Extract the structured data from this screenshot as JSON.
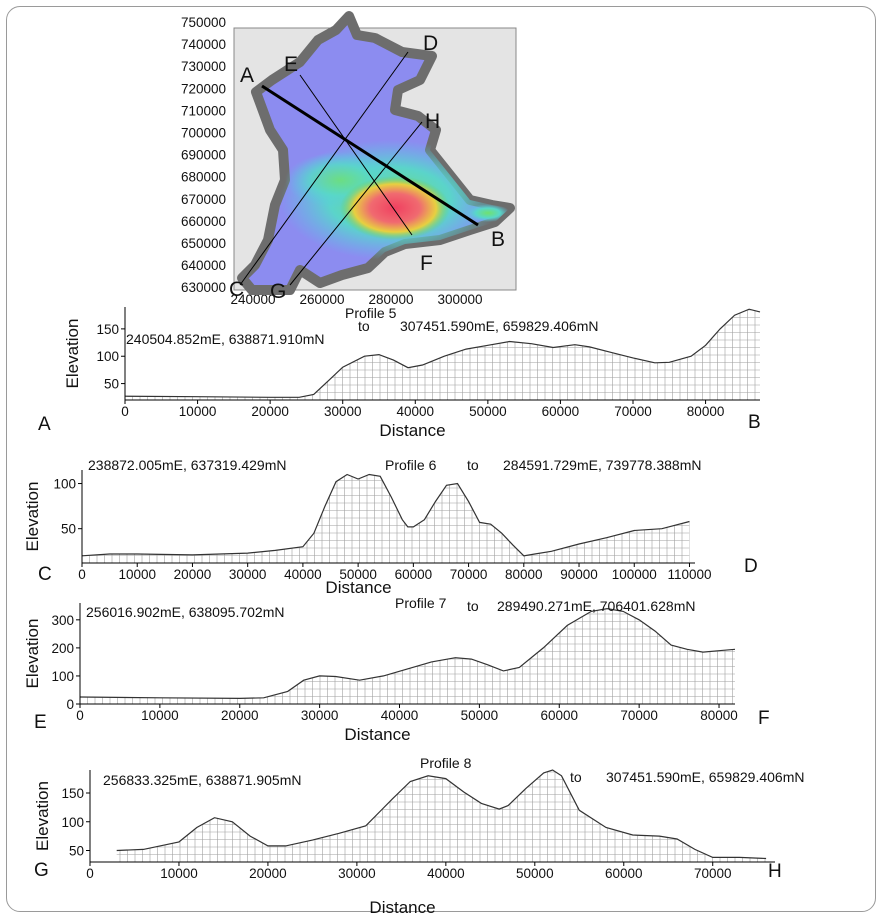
{
  "map": {
    "y_ticks": [
      "750000",
      "740000",
      "730000",
      "720000",
      "710000",
      "700000",
      "690000",
      "680000",
      "670000",
      "660000",
      "650000",
      "640000",
      "630000"
    ],
    "x_ticks": [
      "240000",
      "260000",
      "280000",
      "300000"
    ],
    "labels": [
      "A",
      "B",
      "C",
      "D",
      "E",
      "F",
      "G",
      "H"
    ],
    "colors": {
      "background": "#e4e4e4",
      "border": "#6d6d6d",
      "low": "#8c8cf0",
      "mid": "#58d8c8",
      "green": "#60d060",
      "yellow": "#e8e040",
      "high": "#f04060"
    }
  },
  "chart_data": [
    {
      "type": "area",
      "title": "Profile 5",
      "start_label": "240504.852mE, 638871.910mN",
      "to_label": "to",
      "end_label": "307451.590mE, 659829.406mN",
      "xlabel": "Distance",
      "ylabel": "Elevation",
      "start_point": "A",
      "end_point": "B",
      "xlim": [
        0,
        87500
      ],
      "ylim": [
        20,
        190
      ],
      "x_ticks": [
        0,
        10000,
        20000,
        30000,
        40000,
        50000,
        60000,
        70000,
        80000
      ],
      "y_ticks": [
        50,
        100,
        150
      ],
      "grid": true,
      "x": [
        0,
        10000,
        20000,
        24000,
        26000,
        28000,
        30000,
        33000,
        35000,
        37000,
        39000,
        41000,
        44000,
        47000,
        50000,
        53000,
        56000,
        59000,
        62000,
        64000,
        67000,
        70000,
        73000,
        75000,
        78000,
        80000,
        82000,
        84000,
        86000,
        87500
      ],
      "y": [
        27,
        26,
        25,
        25,
        30,
        55,
        80,
        100,
        103,
        93,
        79,
        84,
        100,
        113,
        120,
        127,
        123,
        116,
        121,
        117,
        107,
        97,
        88,
        89,
        100,
        120,
        150,
        175,
        186,
        181
      ]
    },
    {
      "type": "area",
      "title": "Profile 6",
      "start_label": "238872.005mE, 637319.429mN",
      "to_label": "to",
      "end_label": "284591.729mE, 739778.388mN",
      "xlabel": "Distance",
      "ylabel": "Elevation",
      "start_point": "C",
      "end_point": "D",
      "xlim": [
        0,
        111000
      ],
      "ylim": [
        12,
        115
      ],
      "x_ticks": [
        0,
        10000,
        20000,
        30000,
        40000,
        50000,
        60000,
        70000,
        80000,
        90000,
        100000,
        110000
      ],
      "y_ticks": [
        50,
        100
      ],
      "grid": true,
      "x": [
        0,
        5000,
        10000,
        20000,
        30000,
        35000,
        40000,
        42000,
        44000,
        46000,
        48000,
        50000,
        52000,
        54000,
        56000,
        58000,
        59000,
        60000,
        62000,
        64000,
        66000,
        68000,
        70000,
        72000,
        74000,
        76000,
        78000,
        80000,
        82000,
        85000,
        90000,
        95000,
        100000,
        105000,
        110000
      ],
      "y": [
        20,
        22,
        22,
        21,
        23,
        26,
        30,
        45,
        75,
        102,
        110,
        105,
        110,
        108,
        85,
        60,
        52,
        52,
        60,
        80,
        98,
        100,
        80,
        57,
        55,
        45,
        32,
        20,
        22,
        25,
        33,
        40,
        48,
        50,
        58
      ]
    },
    {
      "type": "area",
      "title": "Profile 7",
      "start_label": "256016.902mE, 638095.702mN",
      "to_label": "to",
      "end_label": "289490.271mE, 706401.628mN",
      "xlabel": "Distance",
      "ylabel": "Elevation",
      "start_point": "E",
      "end_point": "F",
      "xlim": [
        0,
        82000
      ],
      "ylim": [
        0,
        360
      ],
      "x_ticks": [
        0,
        10000,
        20000,
        30000,
        40000,
        50000,
        60000,
        70000,
        80000
      ],
      "y_ticks": [
        0,
        100,
        200,
        300
      ],
      "grid": true,
      "x": [
        0,
        10000,
        20000,
        23000,
        26000,
        28000,
        30000,
        32000,
        35000,
        38000,
        41000,
        44000,
        47000,
        49000,
        51000,
        53000,
        55000,
        58000,
        61000,
        64000,
        66000,
        68000,
        70000,
        72000,
        74000,
        76000,
        78000,
        80000,
        82000
      ],
      "y": [
        25,
        22,
        20,
        22,
        45,
        85,
        100,
        98,
        85,
        100,
        125,
        150,
        165,
        160,
        140,
        118,
        130,
        200,
        280,
        330,
        340,
        330,
        300,
        260,
        210,
        195,
        185,
        190,
        195
      ]
    },
    {
      "type": "area",
      "title": "Profile 8",
      "start_label": "256833.325mE, 638871.905mN",
      "to_label": "to",
      "end_label": "307451.590mE, 659829.406mN",
      "xlabel": "Distance",
      "ylabel": "Elevation",
      "start_point": "G",
      "end_point": "H",
      "xlim": [
        0,
        77000
      ],
      "ylim": [
        30,
        190
      ],
      "x_ticks": [
        0,
        10000,
        20000,
        30000,
        40000,
        50000,
        60000,
        70000
      ],
      "y_ticks": [
        50,
        100,
        150
      ],
      "grid": true,
      "x": [
        3000,
        6000,
        10000,
        12000,
        14000,
        16000,
        18000,
        20000,
        22000,
        25000,
        28000,
        31000,
        34000,
        36000,
        38000,
        40000,
        42000,
        44000,
        46000,
        47000,
        49000,
        51000,
        52000,
        53000,
        55000,
        58000,
        61000,
        64000,
        66000,
        68000,
        70000,
        73000,
        76000
      ],
      "y": [
        50,
        52,
        65,
        90,
        107,
        100,
        75,
        58,
        58,
        68,
        80,
        93,
        140,
        170,
        180,
        175,
        152,
        132,
        122,
        128,
        158,
        185,
        190,
        180,
        120,
        90,
        77,
        75,
        70,
        52,
        38,
        38,
        36
      ]
    }
  ]
}
